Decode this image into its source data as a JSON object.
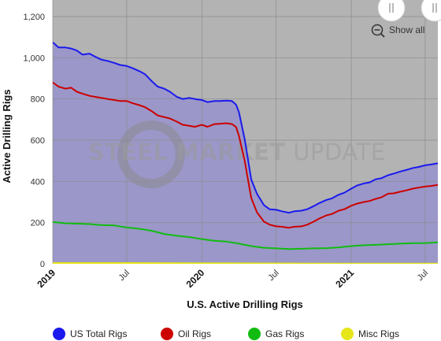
{
  "chart_data": {
    "type": "area",
    "title": "",
    "xlabel": "U.S. Active Drilling Rigs",
    "ylabel": "Active Drilling Rigs",
    "ylim": [
      0,
      1200
    ],
    "yticks": [
      0,
      200,
      400,
      600,
      800,
      1000,
      1200
    ],
    "y_tick_labels": [
      "0",
      "200",
      "400",
      "600",
      "800",
      "1,000",
      "1,200"
    ],
    "xlim": [
      "2019-01-01",
      "2021-08-01"
    ],
    "x_ticks": [
      {
        "date": "2019-01-01",
        "label": "2019",
        "bold": true
      },
      {
        "date": "2019-07-01",
        "label": "Jul",
        "bold": false
      },
      {
        "date": "2020-01-01",
        "label": "2020",
        "bold": true
      },
      {
        "date": "2020-07-01",
        "label": "Jul",
        "bold": false
      },
      {
        "date": "2021-01-01",
        "label": "2021",
        "bold": true
      },
      {
        "date": "2021-07-01",
        "label": "Jul",
        "bold": false
      }
    ],
    "grid": true,
    "legend_position": "bottom",
    "watermark": {
      "bold": "STEEL MARKET",
      "light": " UPDATE"
    },
    "zoom_button": {
      "label": "Show all",
      "icon": "zoom-out-icon"
    },
    "colors": {
      "plot_bg": "#b3b3b3",
      "area_fill": "#9b97c9",
      "grid": "#8c8c8c"
    },
    "series": [
      {
        "name": "US Total Rigs",
        "color": "#1a1aee",
        "points": [
          [
            "2019-01-01",
            1075
          ],
          [
            "2019-01-15",
            1050
          ],
          [
            "2019-02-01",
            1050
          ],
          [
            "2019-02-15",
            1045
          ],
          [
            "2019-03-01",
            1035
          ],
          [
            "2019-03-15",
            1015
          ],
          [
            "2019-04-01",
            1020
          ],
          [
            "2019-04-15",
            1005
          ],
          [
            "2019-05-01",
            990
          ],
          [
            "2019-05-15",
            985
          ],
          [
            "2019-06-01",
            975
          ],
          [
            "2019-06-15",
            965
          ],
          [
            "2019-07-01",
            960
          ],
          [
            "2019-07-15",
            950
          ],
          [
            "2019-08-01",
            935
          ],
          [
            "2019-08-15",
            920
          ],
          [
            "2019-09-01",
            885
          ],
          [
            "2019-09-15",
            860
          ],
          [
            "2019-10-01",
            850
          ],
          [
            "2019-10-15",
            835
          ],
          [
            "2019-11-01",
            810
          ],
          [
            "2019-11-15",
            800
          ],
          [
            "2019-12-01",
            805
          ],
          [
            "2019-12-15",
            800
          ],
          [
            "2020-01-01",
            795
          ],
          [
            "2020-01-15",
            785
          ],
          [
            "2020-02-01",
            790
          ],
          [
            "2020-02-15",
            790
          ],
          [
            "2020-03-01",
            792
          ],
          [
            "2020-03-15",
            790
          ],
          [
            "2020-03-25",
            772
          ],
          [
            "2020-04-01",
            735
          ],
          [
            "2020-04-15",
            605
          ],
          [
            "2020-05-01",
            410
          ],
          [
            "2020-05-15",
            340
          ],
          [
            "2020-06-01",
            285
          ],
          [
            "2020-06-15",
            265
          ],
          [
            "2020-07-01",
            262
          ],
          [
            "2020-07-15",
            255
          ],
          [
            "2020-08-01",
            248
          ],
          [
            "2020-08-15",
            255
          ],
          [
            "2020-09-01",
            258
          ],
          [
            "2020-09-15",
            265
          ],
          [
            "2020-10-01",
            280
          ],
          [
            "2020-10-15",
            295
          ],
          [
            "2020-11-01",
            310
          ],
          [
            "2020-11-15",
            318
          ],
          [
            "2020-12-01",
            335
          ],
          [
            "2020-12-15",
            345
          ],
          [
            "2021-01-01",
            365
          ],
          [
            "2021-01-15",
            380
          ],
          [
            "2021-02-01",
            390
          ],
          [
            "2021-02-15",
            395
          ],
          [
            "2021-03-01",
            410
          ],
          [
            "2021-03-15",
            415
          ],
          [
            "2021-04-01",
            430
          ],
          [
            "2021-04-15",
            438
          ],
          [
            "2021-05-01",
            448
          ],
          [
            "2021-05-15",
            455
          ],
          [
            "2021-06-01",
            465
          ],
          [
            "2021-06-15",
            470
          ],
          [
            "2021-07-01",
            478
          ],
          [
            "2021-07-15",
            482
          ],
          [
            "2021-08-01",
            488
          ]
        ]
      },
      {
        "name": "Oil Rigs",
        "color": "#cc0000",
        "points": [
          [
            "2019-01-01",
            880
          ],
          [
            "2019-01-15",
            860
          ],
          [
            "2019-02-01",
            850
          ],
          [
            "2019-02-15",
            855
          ],
          [
            "2019-03-01",
            835
          ],
          [
            "2019-03-15",
            825
          ],
          [
            "2019-04-01",
            815
          ],
          [
            "2019-04-15",
            810
          ],
          [
            "2019-05-01",
            805
          ],
          [
            "2019-05-15",
            800
          ],
          [
            "2019-06-01",
            795
          ],
          [
            "2019-06-15",
            790
          ],
          [
            "2019-07-01",
            790
          ],
          [
            "2019-07-15",
            780
          ],
          [
            "2019-08-01",
            770
          ],
          [
            "2019-08-15",
            760
          ],
          [
            "2019-09-01",
            740
          ],
          [
            "2019-09-15",
            720
          ],
          [
            "2019-10-01",
            712
          ],
          [
            "2019-10-15",
            705
          ],
          [
            "2019-11-01",
            690
          ],
          [
            "2019-11-15",
            675
          ],
          [
            "2019-12-01",
            670
          ],
          [
            "2019-12-15",
            665
          ],
          [
            "2020-01-01",
            675
          ],
          [
            "2020-01-15",
            665
          ],
          [
            "2020-02-01",
            678
          ],
          [
            "2020-02-15",
            680
          ],
          [
            "2020-03-01",
            682
          ],
          [
            "2020-03-15",
            678
          ],
          [
            "2020-03-25",
            664
          ],
          [
            "2020-04-01",
            620
          ],
          [
            "2020-04-15",
            500
          ],
          [
            "2020-05-01",
            320
          ],
          [
            "2020-05-15",
            250
          ],
          [
            "2020-06-01",
            205
          ],
          [
            "2020-06-15",
            190
          ],
          [
            "2020-07-01",
            182
          ],
          [
            "2020-07-15",
            180
          ],
          [
            "2020-08-01",
            175
          ],
          [
            "2020-08-15",
            180
          ],
          [
            "2020-09-01",
            182
          ],
          [
            "2020-09-15",
            190
          ],
          [
            "2020-10-01",
            205
          ],
          [
            "2020-10-15",
            220
          ],
          [
            "2020-11-01",
            235
          ],
          [
            "2020-11-15",
            242
          ],
          [
            "2020-12-01",
            258
          ],
          [
            "2020-12-15",
            265
          ],
          [
            "2021-01-01",
            282
          ],
          [
            "2021-01-15",
            292
          ],
          [
            "2021-02-01",
            300
          ],
          [
            "2021-02-15",
            305
          ],
          [
            "2021-03-01",
            315
          ],
          [
            "2021-03-15",
            322
          ],
          [
            "2021-04-01",
            340
          ],
          [
            "2021-04-15",
            342
          ],
          [
            "2021-05-01",
            350
          ],
          [
            "2021-05-15",
            356
          ],
          [
            "2021-06-01",
            365
          ],
          [
            "2021-06-15",
            370
          ],
          [
            "2021-07-01",
            375
          ],
          [
            "2021-07-15",
            378
          ],
          [
            "2021-08-01",
            383
          ]
        ]
      },
      {
        "name": "Gas Rigs",
        "color": "#11bb11",
        "points": [
          [
            "2019-01-01",
            203
          ],
          [
            "2019-02-01",
            197
          ],
          [
            "2019-03-01",
            195
          ],
          [
            "2019-04-01",
            193
          ],
          [
            "2019-05-01",
            188
          ],
          [
            "2019-06-01",
            186
          ],
          [
            "2019-07-01",
            176
          ],
          [
            "2019-08-01",
            170
          ],
          [
            "2019-09-01",
            160
          ],
          [
            "2019-10-01",
            145
          ],
          [
            "2019-11-01",
            136
          ],
          [
            "2019-12-01",
            130
          ],
          [
            "2020-01-01",
            120
          ],
          [
            "2020-02-01",
            112
          ],
          [
            "2020-03-01",
            108
          ],
          [
            "2020-04-01",
            98
          ],
          [
            "2020-05-01",
            86
          ],
          [
            "2020-06-01",
            78
          ],
          [
            "2020-07-01",
            75
          ],
          [
            "2020-08-01",
            72
          ],
          [
            "2020-09-01",
            73
          ],
          [
            "2020-10-01",
            75
          ],
          [
            "2020-11-01",
            76
          ],
          [
            "2020-12-01",
            80
          ],
          [
            "2021-01-01",
            86
          ],
          [
            "2021-02-01",
            90
          ],
          [
            "2021-03-01",
            92
          ],
          [
            "2021-04-01",
            95
          ],
          [
            "2021-05-01",
            98
          ],
          [
            "2021-06-01",
            100
          ],
          [
            "2021-07-01",
            101
          ],
          [
            "2021-08-01",
            104
          ]
        ]
      },
      {
        "name": "Misc Rigs",
        "color": "#e6e61a",
        "points": [
          [
            "2019-01-01",
            4
          ],
          [
            "2019-07-01",
            4
          ],
          [
            "2020-01-01",
            3
          ],
          [
            "2020-07-01",
            2
          ],
          [
            "2021-01-01",
            1
          ],
          [
            "2021-08-01",
            1
          ]
        ]
      }
    ]
  }
}
